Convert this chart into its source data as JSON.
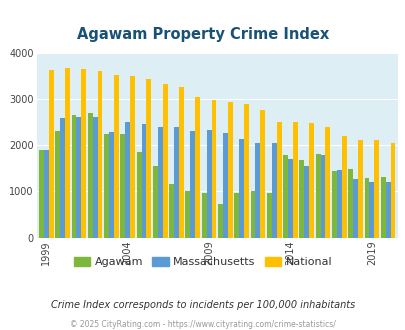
{
  "title": "Agawam Property Crime Index",
  "years": [
    1999,
    2000,
    2001,
    2002,
    2003,
    2004,
    2005,
    2006,
    2007,
    2008,
    2009,
    2010,
    2011,
    2012,
    2013,
    2014,
    2015,
    2016,
    2017,
    2018,
    2019,
    2020
  ],
  "agawam": [
    1900,
    2300,
    2650,
    2700,
    2250,
    2250,
    1850,
    1550,
    1150,
    1000,
    960,
    730,
    970,
    1000,
    970,
    1780,
    1680,
    1800,
    1450,
    1480,
    1300,
    1320
  ],
  "massachusetts": [
    1900,
    2580,
    2620,
    2600,
    2280,
    2500,
    2450,
    2400,
    2400,
    2310,
    2330,
    2260,
    2140,
    2050,
    2050,
    1700,
    1560,
    1780,
    1470,
    1270,
    1200,
    1200
  ],
  "national": [
    3620,
    3680,
    3660,
    3610,
    3520,
    3490,
    3440,
    3330,
    3250,
    3040,
    2970,
    2930,
    2890,
    2760,
    2510,
    2510,
    2480,
    2400,
    2200,
    2120,
    2110,
    2050
  ],
  "agawam_color": "#7db73b",
  "massachusetts_color": "#5b9bd5",
  "national_color": "#ffc000",
  "bg_color": "#ddeef5",
  "ylabel_ticks": [
    0,
    1000,
    2000,
    3000,
    4000
  ],
  "xtick_years": [
    1999,
    2004,
    2009,
    2014,
    2019
  ],
  "ylim": [
    0,
    4000
  ],
  "subtitle": "Crime Index corresponds to incidents per 100,000 inhabitants",
  "footer": "© 2025 CityRating.com - https://www.cityrating.com/crime-statistics/"
}
